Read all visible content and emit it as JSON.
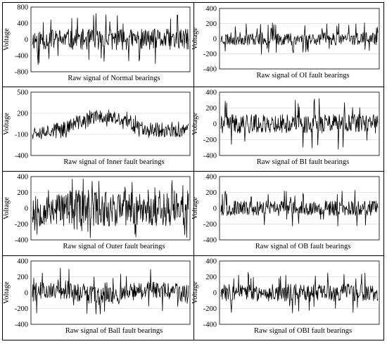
{
  "chart_data": [
    {
      "type": "line",
      "title": "Raw signal of Normal bearings",
      "ylabel": "Voltage",
      "yticks": [
        800,
        400,
        0,
        -400,
        -800
      ],
      "ylim": [
        -800,
        800
      ],
      "amplitude": 260,
      "spikes": 640,
      "trend": "flat",
      "seed": 11,
      "gridlines": true
    },
    {
      "type": "line",
      "title": "Raw signal of OI fault bearings",
      "ylabel": "Voltage",
      "yticks": [
        400,
        200,
        0,
        -200,
        -400
      ],
      "ylim": [
        -400,
        400
      ],
      "amplitude": 85,
      "spikes": 210,
      "trend": "flat",
      "seed": 23,
      "gridlines": true
    },
    {
      "type": "line",
      "title": "Raw signal of Inner fault bearings",
      "ylabel": "Voltage",
      "yticks": [
        500,
        200,
        -100,
        -400
      ],
      "ylim": [
        -400,
        500
      ],
      "amplitude": 95,
      "spikes": 150,
      "trend": "hump",
      "seed": 37,
      "gridlines": true
    },
    {
      "type": "line",
      "title": "Raw signal of BI fault bearings",
      "ylabel": "Voltage",
      "yticks": [
        400,
        200,
        0,
        -200,
        -400
      ],
      "ylim": [
        -400,
        400
      ],
      "amplitude": 120,
      "spikes": 340,
      "trend": "flat",
      "seed": 41,
      "gridlines": true
    },
    {
      "type": "line",
      "title": "Raw signal of Outer fault bearings",
      "ylabel": "Voltage",
      "yticks": [
        400,
        200,
        0,
        -200,
        -400
      ],
      "ylim": [
        -400,
        400
      ],
      "amplitude": 230,
      "spikes": 380,
      "trend": "flat",
      "seed": 53,
      "gridlines": true
    },
    {
      "type": "line",
      "title": "Raw signal of OB fault bearings",
      "ylabel": "Voltage",
      "yticks": [
        400,
        200,
        0,
        -200,
        -400
      ],
      "ylim": [
        -400,
        400
      ],
      "amplitude": 95,
      "spikes": 230,
      "trend": "flat",
      "seed": 67,
      "gridlines": true
    },
    {
      "type": "line",
      "title": "Raw signal of Ball fault bearings",
      "ylabel": "Voltage",
      "yticks": [
        400,
        200,
        0,
        -200,
        -400
      ],
      "ylim": [
        -400,
        400
      ],
      "amplitude": 120,
      "spikes": 280,
      "trend": "wave",
      "seed": 79,
      "gridlines": true
    },
    {
      "type": "line",
      "title": "Raw signal of OBI fault bearings",
      "ylabel": "Voltage",
      "yticks": [
        400,
        200,
        0,
        -200,
        -400
      ],
      "ylim": [
        -400,
        400
      ],
      "amplitude": 110,
      "spikes": 260,
      "trend": "flat",
      "seed": 83,
      "gridlines": true
    }
  ]
}
